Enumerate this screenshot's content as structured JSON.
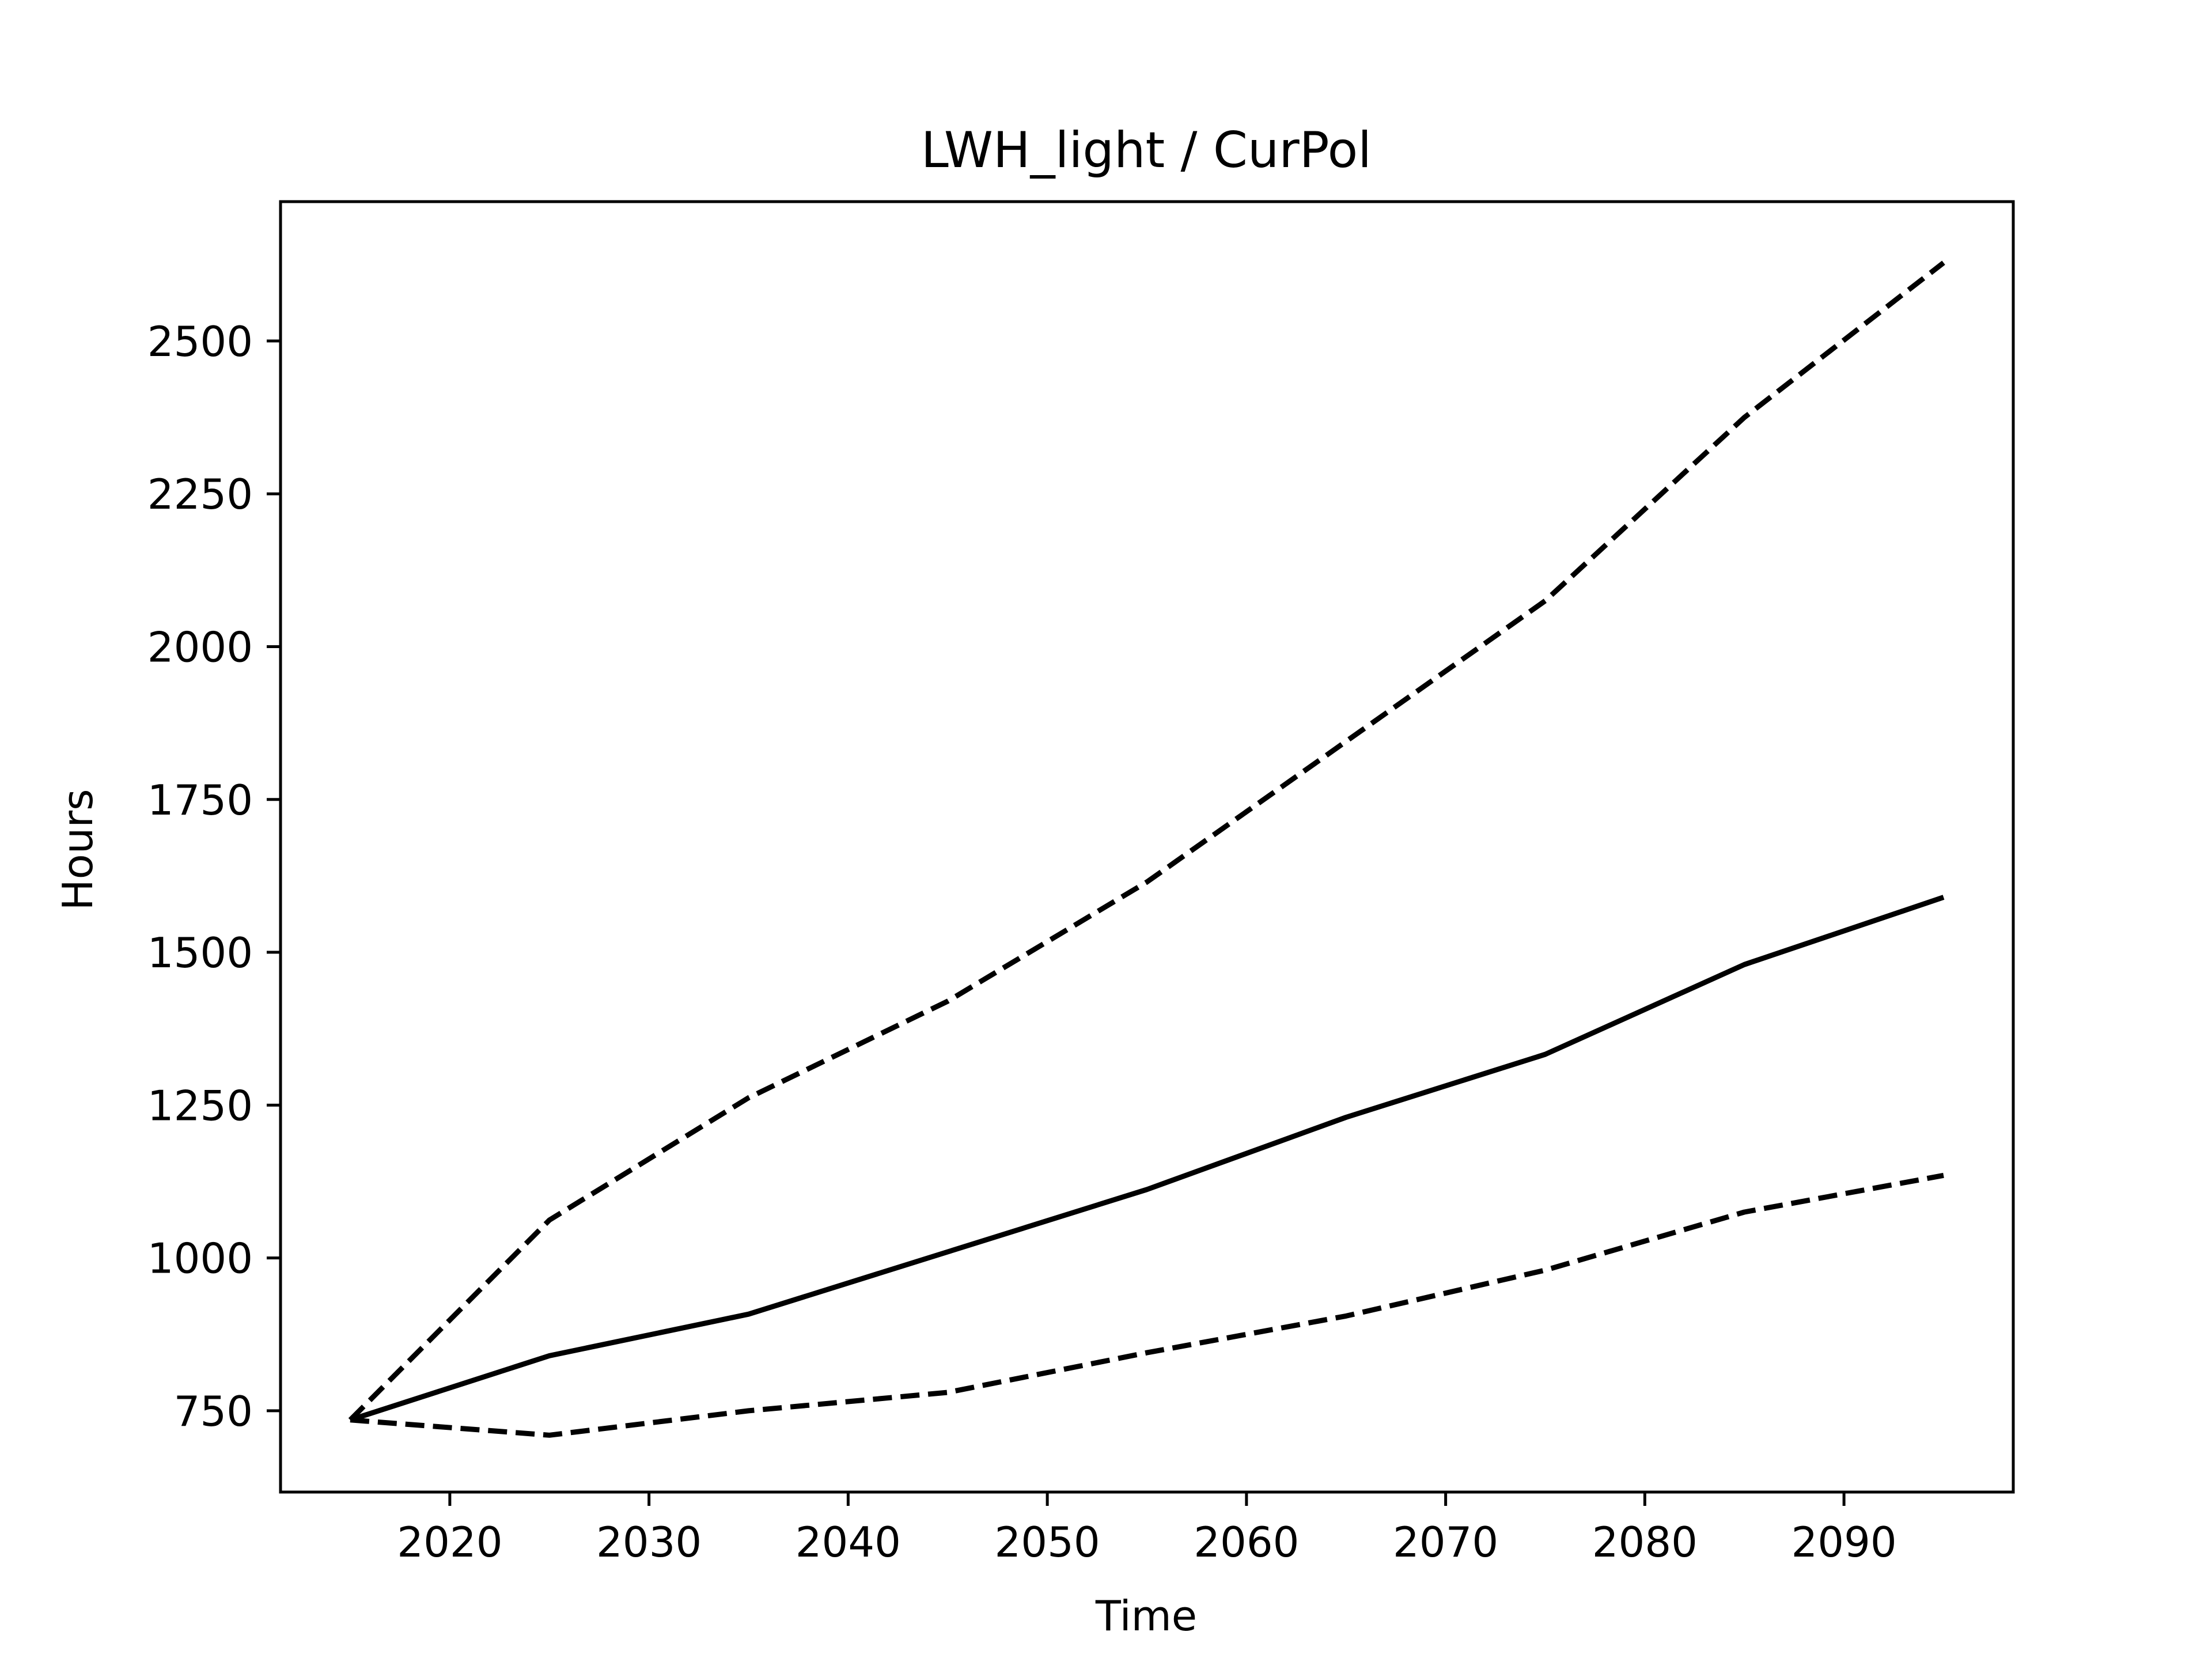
{
  "chart_data": {
    "type": "line",
    "title": "LWH_light / CurPol",
    "xlabel": "Time",
    "ylabel": "Hours",
    "x": [
      2015,
      2025,
      2035,
      2045,
      2055,
      2065,
      2075,
      2085,
      2095
    ],
    "xlim": [
      2011.5,
      2098.5
    ],
    "ylim": [
      617,
      2728
    ],
    "xticks": [
      2020,
      2030,
      2040,
      2050,
      2060,
      2070,
      2080,
      2090
    ],
    "yticks": [
      750,
      1000,
      1250,
      1500,
      1750,
      2000,
      2250,
      2500
    ],
    "grid": false,
    "series": [
      {
        "values": [
          735,
          840,
          908,
          1010,
          1112,
          1230,
          1333,
          1480,
          1590
        ],
        "color": "#000000",
        "style": "solid"
      },
      {
        "values": [
          735,
          1062,
          1262,
          1420,
          1615,
          1845,
          2075,
          2375,
          2628
        ],
        "color": "#000000",
        "style": "dashed"
      },
      {
        "values": [
          735,
          710,
          750,
          780,
          845,
          905,
          980,
          1075,
          1135
        ],
        "color": "#000000",
        "style": "dashed"
      }
    ]
  }
}
